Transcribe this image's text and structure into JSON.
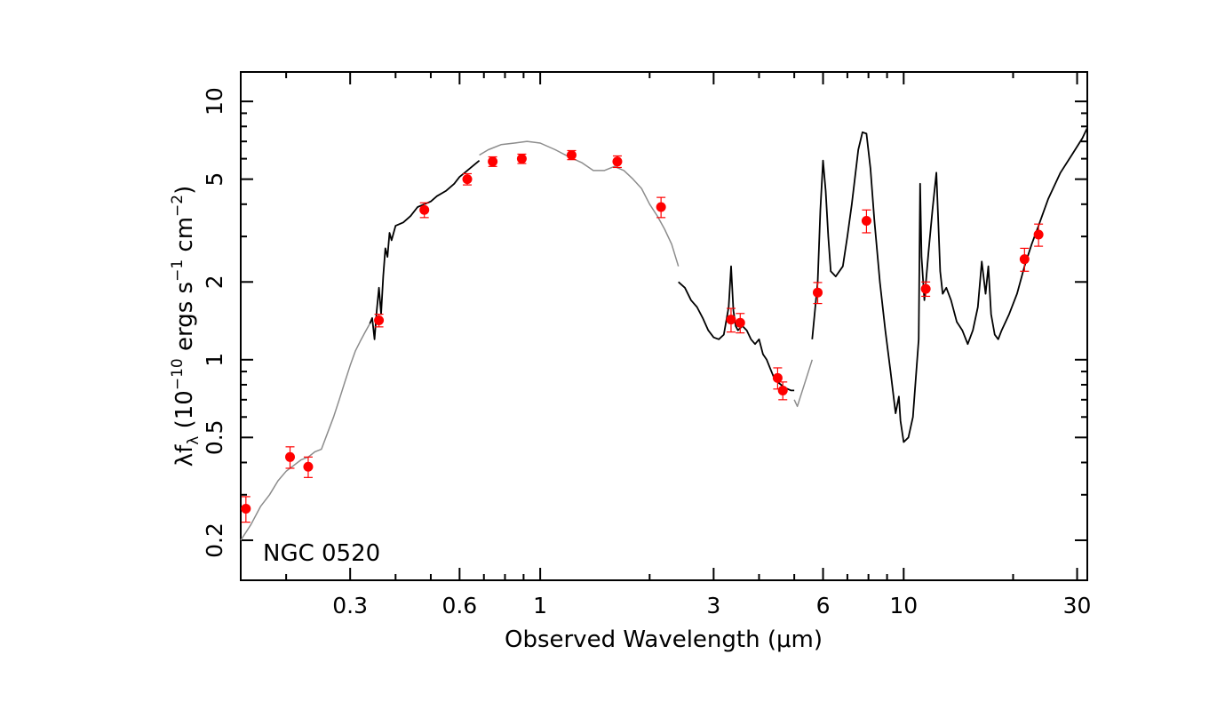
{
  "chart_data": {
    "type": "line",
    "title": "NGC 0520",
    "xlabel": "Observed Wavelength (μm)",
    "ylabel": {
      "prefix": "λf",
      "sub": "λ",
      "open": " (10",
      "exp1": "−10",
      "middle": " ergs s",
      "exp2": "−1",
      "middle2": " cm",
      "exp3": "−2",
      "close": ")"
    },
    "xscale": "log",
    "yscale": "log",
    "xlim": [
      0.15,
      32
    ],
    "ylim": [
      0.14,
      13
    ],
    "grid": false,
    "legend": "none",
    "x_ticks": [
      {
        "value": 0.3,
        "label": "0.3"
      },
      {
        "value": 0.6,
        "label": "0.6"
      },
      {
        "value": 1,
        "label": "1"
      },
      {
        "value": 3,
        "label": "3"
      },
      {
        "value": 6,
        "label": "6"
      },
      {
        "value": 10,
        "label": "10"
      },
      {
        "value": 30,
        "label": "30"
      }
    ],
    "y_ticks": [
      {
        "value": 0.2,
        "label": "0.2"
      },
      {
        "value": 0.5,
        "label": "0.5"
      },
      {
        "value": 1,
        "label": "1"
      },
      {
        "value": 2,
        "label": "2"
      },
      {
        "value": 5,
        "label": "5"
      },
      {
        "value": 10,
        "label": "10"
      }
    ],
    "series": [
      {
        "kind": "model",
        "color": "#8c8c8c",
        "x": [
          0.15,
          0.16,
          0.17,
          0.18,
          0.19,
          0.2,
          0.21,
          0.22,
          0.23,
          0.24,
          0.25,
          0.26,
          0.27,
          0.28,
          0.29,
          0.3,
          0.31,
          0.32,
          0.33,
          0.34
        ],
        "y": [
          0.2,
          0.23,
          0.27,
          0.3,
          0.34,
          0.37,
          0.39,
          0.41,
          0.42,
          0.44,
          0.45,
          0.52,
          0.6,
          0.7,
          0.82,
          0.95,
          1.08,
          1.18,
          1.28,
          1.38
        ]
      },
      {
        "kind": "observed",
        "color": "#000000",
        "x": [
          0.34,
          0.345,
          0.35,
          0.355,
          0.36,
          0.365,
          0.37,
          0.375,
          0.38,
          0.385,
          0.39,
          0.4,
          0.42,
          0.44,
          0.46,
          0.48,
          0.5,
          0.52,
          0.55,
          0.58,
          0.6,
          0.62,
          0.65,
          0.68
        ],
        "y": [
          1.38,
          1.45,
          1.2,
          1.55,
          1.9,
          1.5,
          2.1,
          2.7,
          2.5,
          3.1,
          2.9,
          3.3,
          3.4,
          3.6,
          3.9,
          4.0,
          4.1,
          4.3,
          4.5,
          4.8,
          5.1,
          5.3,
          5.6,
          5.9
        ]
      },
      {
        "kind": "model",
        "color": "#8c8c8c",
        "x": [
          0.68,
          0.72,
          0.78,
          0.85,
          0.92,
          1.0,
          1.1,
          1.2,
          1.3,
          1.4,
          1.5,
          1.6,
          1.7,
          1.8,
          1.9,
          2.0,
          2.1,
          2.2,
          2.3,
          2.4
        ],
        "y": [
          6.2,
          6.5,
          6.8,
          6.9,
          7.0,
          6.9,
          6.5,
          6.1,
          5.8,
          5.4,
          5.4,
          5.6,
          5.4,
          5.0,
          4.6,
          4.0,
          3.6,
          3.2,
          2.8,
          2.3
        ]
      },
      {
        "kind": "observed",
        "color": "#000000",
        "x": [
          2.4,
          2.5,
          2.6,
          2.7,
          2.8,
          2.9,
          3.0,
          3.1,
          3.2,
          3.3,
          3.35,
          3.4,
          3.45,
          3.5,
          3.6,
          3.7,
          3.8,
          3.9,
          4.0,
          4.1,
          4.2,
          4.3,
          4.4,
          4.5,
          4.6,
          4.7,
          4.8,
          4.9,
          5.0
        ],
        "y": [
          2.0,
          1.9,
          1.7,
          1.6,
          1.45,
          1.3,
          1.22,
          1.2,
          1.25,
          1.6,
          2.3,
          1.55,
          1.35,
          1.3,
          1.35,
          1.3,
          1.2,
          1.15,
          1.2,
          1.05,
          1.0,
          0.92,
          0.85,
          0.82,
          0.8,
          0.78,
          0.77,
          0.76,
          0.76
        ]
      },
      {
        "kind": "model",
        "color": "#8c8c8c",
        "x": [
          5.0,
          5.1,
          5.2,
          5.4,
          5.6
        ],
        "y": [
          0.7,
          0.66,
          0.72,
          0.85,
          1.0
        ]
      },
      {
        "kind": "observed",
        "color": "#000000",
        "x": [
          5.6,
          5.8,
          5.9,
          6.0,
          6.1,
          6.2,
          6.3,
          6.5,
          6.8,
          7.0,
          7.2,
          7.5,
          7.7,
          7.9,
          8.1,
          8.3,
          8.6,
          8.9,
          9.2,
          9.5,
          9.7,
          9.8,
          10.0,
          10.3,
          10.6,
          11.0,
          11.1,
          11.2,
          11.4,
          11.7,
          12.0,
          12.3,
          12.6,
          12.8,
          13.1,
          13.5,
          14.0,
          14.5,
          15.0,
          15.5,
          16.0,
          16.4,
          16.8,
          17.1,
          17.4,
          17.8,
          18.2,
          18.6,
          19.5,
          20.5,
          21.5,
          22.5,
          23.5,
          25,
          27,
          29,
          31,
          32
        ],
        "y": [
          1.2,
          2.0,
          3.8,
          5.9,
          4.5,
          3.0,
          2.2,
          2.1,
          2.3,
          3.0,
          4.0,
          6.5,
          7.6,
          7.5,
          5.5,
          3.5,
          2.0,
          1.3,
          0.9,
          0.62,
          0.72,
          0.58,
          0.48,
          0.5,
          0.6,
          1.2,
          4.8,
          2.5,
          1.7,
          2.6,
          3.8,
          5.3,
          2.2,
          1.8,
          1.9,
          1.7,
          1.4,
          1.3,
          1.15,
          1.3,
          1.6,
          2.4,
          1.8,
          2.3,
          1.5,
          1.25,
          1.2,
          1.3,
          1.5,
          1.8,
          2.3,
          2.8,
          3.3,
          4.2,
          5.3,
          6.2,
          7.2,
          7.9
        ]
      }
    ],
    "points": {
      "color": "#ff0000",
      "x": [
        0.155,
        0.205,
        0.23,
        0.36,
        0.48,
        0.63,
        0.74,
        0.89,
        1.22,
        1.63,
        2.15,
        3.35,
        3.55,
        4.5,
        4.65,
        5.8,
        7.9,
        11.5,
        21.5,
        23.5
      ],
      "y": [
        0.265,
        0.42,
        0.385,
        1.42,
        3.8,
        5.0,
        5.85,
        6.0,
        6.2,
        5.85,
        3.9,
        1.43,
        1.39,
        0.85,
        0.76,
        1.82,
        3.45,
        1.88,
        2.45,
        3.05
      ],
      "err": [
        0.03,
        0.04,
        0.035,
        0.08,
        0.25,
        0.25,
        0.25,
        0.25,
        0.25,
        0.3,
        0.35,
        0.15,
        0.12,
        0.08,
        0.06,
        0.17,
        0.35,
        0.12,
        0.25,
        0.3
      ]
    }
  }
}
